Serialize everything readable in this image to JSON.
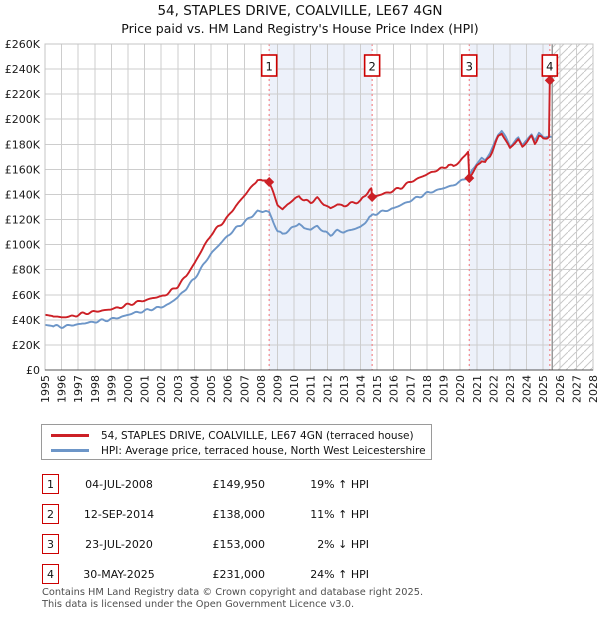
{
  "title": "54, STAPLES DRIVE, COALVILLE, LE67 4GN",
  "subtitle": "Price paid vs. HM Land Registry's House Price Index (HPI)",
  "colors": {
    "red": "#cc2026",
    "blue": "#6d96c8",
    "band": "#edf1fa",
    "grid": "#cdcdcd",
    "border": "#c4c4c4",
    "axis": "#555555",
    "dashed": "#f3888b",
    "end_line": "#999999",
    "hatch": "#c9c9c9",
    "marker_box_border": "#cc0000"
  },
  "chart_data": {
    "type": "line",
    "title": "54, STAPLES DRIVE, COALVILLE, LE67 4GN",
    "xlabel": "",
    "ylabel": "",
    "grid": true,
    "legend_position": "bottom",
    "x_axis": {
      "min": 1995,
      "max": 2028,
      "tick_labels": [
        "1995",
        "1996",
        "1997",
        "1998",
        "1999",
        "2000",
        "2001",
        "2002",
        "2003",
        "2004",
        "2005",
        "2006",
        "2007",
        "2008",
        "2009",
        "2010",
        "2011",
        "2012",
        "2013",
        "2014",
        "2015",
        "2016",
        "2017",
        "2018",
        "2019",
        "2020",
        "2021",
        "2022",
        "2023",
        "2024",
        "2025",
        "2026",
        "2027",
        "2028"
      ]
    },
    "y_axis": {
      "min": 0,
      "max": 260,
      "tick_step": 20,
      "unit": "GBP thousands",
      "tick_labels": [
        "£0",
        "£20K",
        "£40K",
        "£60K",
        "£80K",
        "£100K",
        "£120K",
        "£140K",
        "£160K",
        "£180K",
        "£200K",
        "£220K",
        "£240K",
        "£260K"
      ]
    },
    "series": [
      {
        "name": "HPI: Average price, terraced house, North West Leicestershire",
        "color": "#6d96c8",
        "points": [
          [
            1995.0,
            36
          ],
          [
            1995.5,
            35
          ],
          [
            1996.0,
            34.5
          ],
          [
            1996.5,
            35.5
          ],
          [
            1997.0,
            36.5
          ],
          [
            1997.5,
            37.5
          ],
          [
            1998.0,
            38.5
          ],
          [
            1998.5,
            39.5
          ],
          [
            1999.0,
            40.5
          ],
          [
            1999.5,
            42
          ],
          [
            2000.0,
            44
          ],
          [
            2000.5,
            46
          ],
          [
            2001.0,
            47
          ],
          [
            2001.5,
            49
          ],
          [
            2002.0,
            50
          ],
          [
            2002.5,
            53
          ],
          [
            2003.0,
            58
          ],
          [
            2003.5,
            65
          ],
          [
            2004.0,
            73
          ],
          [
            2004.5,
            83
          ],
          [
            2005.0,
            93
          ],
          [
            2005.5,
            100
          ],
          [
            2006.0,
            107
          ],
          [
            2006.5,
            113
          ],
          [
            2007.0,
            118
          ],
          [
            2007.5,
            123
          ],
          [
            2007.8,
            127
          ],
          [
            2008.1,
            126
          ],
          [
            2008.3,
            127
          ],
          [
            2008.5,
            126
          ],
          [
            2008.75,
            118
          ],
          [
            2009.0,
            111
          ],
          [
            2009.3,
            108
          ],
          [
            2009.6,
            111
          ],
          [
            2010.0,
            114
          ],
          [
            2010.3,
            117
          ],
          [
            2010.6,
            113
          ],
          [
            2011.0,
            112
          ],
          [
            2011.4,
            115
          ],
          [
            2011.8,
            110
          ],
          [
            2012.2,
            108
          ],
          [
            2012.6,
            111
          ],
          [
            2013.0,
            110
          ],
          [
            2013.5,
            112
          ],
          [
            2014.0,
            114
          ],
          [
            2014.3,
            118
          ],
          [
            2014.7,
            124
          ],
          [
            2015.0,
            125
          ],
          [
            2015.5,
            127
          ],
          [
            2016.0,
            129
          ],
          [
            2016.5,
            132
          ],
          [
            2017.0,
            135
          ],
          [
            2017.5,
            138
          ],
          [
            2018.0,
            141
          ],
          [
            2018.5,
            143
          ],
          [
            2019.0,
            145
          ],
          [
            2019.5,
            147
          ],
          [
            2020.0,
            150
          ],
          [
            2020.3,
            153
          ],
          [
            2020.55,
            156
          ],
          [
            2020.8,
            160
          ],
          [
            2021.0,
            165
          ],
          [
            2021.3,
            169
          ],
          [
            2021.5,
            167
          ],
          [
            2021.8,
            173
          ],
          [
            2022.0,
            179
          ],
          [
            2022.3,
            188
          ],
          [
            2022.5,
            191
          ],
          [
            2022.75,
            185
          ],
          [
            2023.0,
            179
          ],
          [
            2023.3,
            182
          ],
          [
            2023.5,
            185
          ],
          [
            2023.75,
            180
          ],
          [
            2024.0,
            183
          ],
          [
            2024.3,
            188
          ],
          [
            2024.5,
            183
          ],
          [
            2024.75,
            189
          ],
          [
            2025.0,
            186
          ],
          [
            2025.5,
            186
          ]
        ]
      },
      {
        "name": "54, STAPLES DRIVE, COALVILLE, LE67 4GN (terraced house)",
        "color": "#cc2026",
        "points": [
          [
            1995.0,
            44
          ],
          [
            1995.5,
            43
          ],
          [
            1996.0,
            42
          ],
          [
            1996.5,
            42.5
          ],
          [
            1997.0,
            44
          ],
          [
            1997.5,
            45.5
          ],
          [
            1998.0,
            46.5
          ],
          [
            1998.5,
            47.5
          ],
          [
            1999.0,
            48.5
          ],
          [
            1999.5,
            50
          ],
          [
            2000.0,
            52
          ],
          [
            2000.5,
            54
          ],
          [
            2001.0,
            55.5
          ],
          [
            2001.5,
            57.5
          ],
          [
            2002.0,
            58.5
          ],
          [
            2002.5,
            62
          ],
          [
            2003.0,
            67
          ],
          [
            2003.5,
            75
          ],
          [
            2004.0,
            85
          ],
          [
            2004.5,
            97
          ],
          [
            2005.0,
            108
          ],
          [
            2005.5,
            115
          ],
          [
            2006.0,
            122
          ],
          [
            2006.5,
            131
          ],
          [
            2007.0,
            139
          ],
          [
            2007.5,
            147
          ],
          [
            2007.8,
            152
          ],
          [
            2008.1,
            150
          ],
          [
            2008.3,
            152
          ],
          [
            2008.5,
            149.95
          ],
          [
            2008.75,
            141
          ],
          [
            2009.0,
            132
          ],
          [
            2009.3,
            128
          ],
          [
            2009.6,
            132
          ],
          [
            2010.0,
            136
          ],
          [
            2010.3,
            139
          ],
          [
            2010.6,
            135
          ],
          [
            2011.0,
            134
          ],
          [
            2011.4,
            137
          ],
          [
            2011.8,
            132
          ],
          [
            2012.2,
            129
          ],
          [
            2012.6,
            132
          ],
          [
            2013.0,
            131
          ],
          [
            2013.5,
            133
          ],
          [
            2014.0,
            135
          ],
          [
            2014.3,
            139
          ],
          [
            2014.55,
            144
          ],
          [
            2014.65,
            145
          ],
          [
            2014.7,
            138
          ],
          [
            2015.0,
            139
          ],
          [
            2015.5,
            141
          ],
          [
            2016.0,
            143
          ],
          [
            2016.5,
            146
          ],
          [
            2017.0,
            150
          ],
          [
            2017.5,
            153
          ],
          [
            2018.0,
            156
          ],
          [
            2018.5,
            159
          ],
          [
            2019.0,
            161
          ],
          [
            2019.3,
            164
          ],
          [
            2019.6,
            162
          ],
          [
            2020.0,
            167
          ],
          [
            2020.3,
            171
          ],
          [
            2020.48,
            174
          ],
          [
            2020.55,
            153
          ],
          [
            2020.8,
            158
          ],
          [
            2021.0,
            163
          ],
          [
            2021.3,
            167
          ],
          [
            2021.5,
            165
          ],
          [
            2021.8,
            171
          ],
          [
            2022.0,
            177
          ],
          [
            2022.3,
            186
          ],
          [
            2022.5,
            189
          ],
          [
            2022.75,
            183
          ],
          [
            2023.0,
            177
          ],
          [
            2023.3,
            181
          ],
          [
            2023.5,
            184
          ],
          [
            2023.75,
            178
          ],
          [
            2024.0,
            182
          ],
          [
            2024.3,
            186
          ],
          [
            2024.5,
            181
          ],
          [
            2024.75,
            187
          ],
          [
            2025.0,
            184
          ],
          [
            2025.35,
            186
          ],
          [
            2025.4,
            231
          ]
        ]
      }
    ],
    "sale_markers": [
      {
        "n": "1",
        "year": 2008.5,
        "value": 149.95
      },
      {
        "n": "2",
        "year": 2014.7,
        "value": 138
      },
      {
        "n": "3",
        "year": 2020.55,
        "value": 153
      },
      {
        "n": "4",
        "year": 2025.4,
        "value": 231
      }
    ],
    "shaded_bands": [
      [
        2008.5,
        2014.7
      ],
      [
        2020.55,
        2025.4
      ]
    ],
    "future_hatch_start": 2025.55
  },
  "legend": {
    "entries": [
      {
        "label": "54, STAPLES DRIVE, COALVILLE, LE67 4GN (terraced house)",
        "color": "#cc2026"
      },
      {
        "label": "HPI: Average price, terraced house, North West Leicestershire",
        "color": "#6d96c8"
      }
    ]
  },
  "table": {
    "rows": [
      {
        "num": "1",
        "date": "04-JUL-2008",
        "price": "£149,950",
        "hpi": "19% ↑ HPI"
      },
      {
        "num": "2",
        "date": "12-SEP-2014",
        "price": "£138,000",
        "hpi": "11% ↑ HPI"
      },
      {
        "num": "3",
        "date": "23-JUL-2020",
        "price": "£153,000",
        "hpi": "2% ↓ HPI"
      },
      {
        "num": "4",
        "date": "30-MAY-2025",
        "price": "£231,000",
        "hpi": "24% ↑ HPI"
      }
    ]
  },
  "footer": {
    "line1": "Contains HM Land Registry data © Crown copyright and database right 2025.",
    "line2": "This data is licensed under the Open Government Licence v3.0."
  }
}
